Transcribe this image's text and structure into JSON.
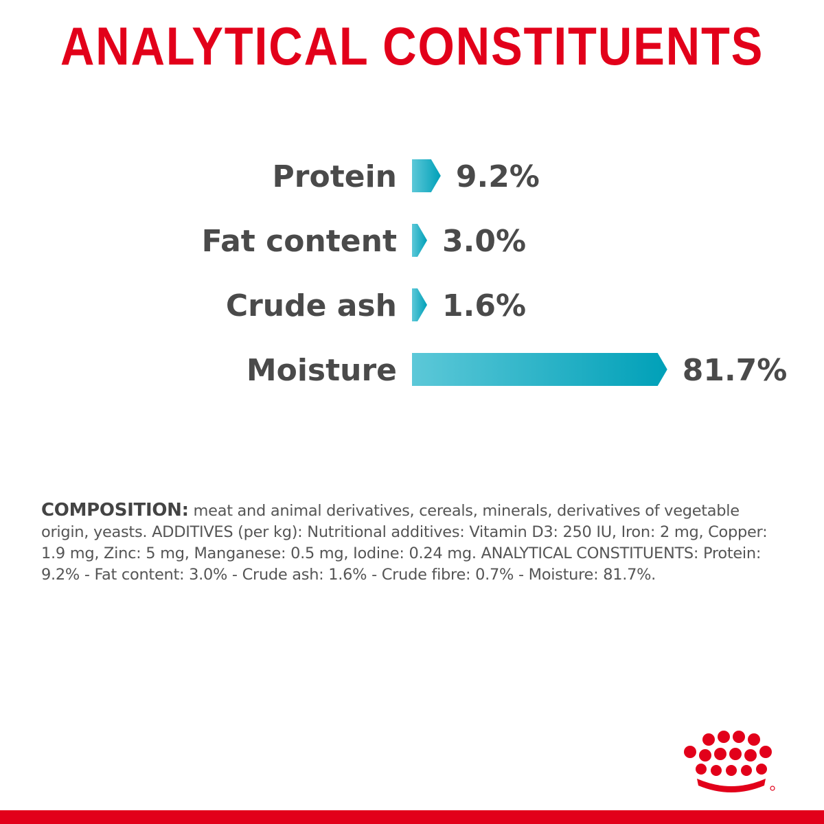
{
  "title": "ANALYTICAL CONSTITUENTS",
  "chart_data": {
    "type": "bar",
    "orientation": "horizontal",
    "categories": [
      "Protein",
      "Fat content",
      "Crude ash",
      "Moisture"
    ],
    "values": [
      9.2,
      3.0,
      1.6,
      81.7
    ],
    "value_labels": [
      "9.2%",
      "3.0%",
      "1.6%",
      "81.7%"
    ],
    "unit": "%",
    "bar_color_start": "#5cc8d8",
    "bar_color_end": "#00a0b8",
    "grid": false,
    "legend": "none"
  },
  "composition": {
    "lead": "COMPOSITION:",
    "text": " meat and animal derivatives, cereals, minerals, derivatives of vegetable origin, yeasts. ADDITIVES (per kg): Nutritional additives: Vitamin D3: 250 IU, Iron: 2 mg, Copper: 1.9 mg, Zinc: 5 mg, Manganese: 0.5 mg, Iodine: 0.24 mg. ANALYTICAL CONSTITUENTS: Protein: 9.2% - Fat content: 3.0% - Crude ash: 1.6% - Crude fibre: 0.7% - Moisture: 81.7%."
  },
  "logo": {
    "icon": "crown-logo-icon",
    "color": "#e2001a"
  },
  "colors": {
    "brand_red": "#e2001a",
    "text_gray": "#4a4a4a"
  }
}
